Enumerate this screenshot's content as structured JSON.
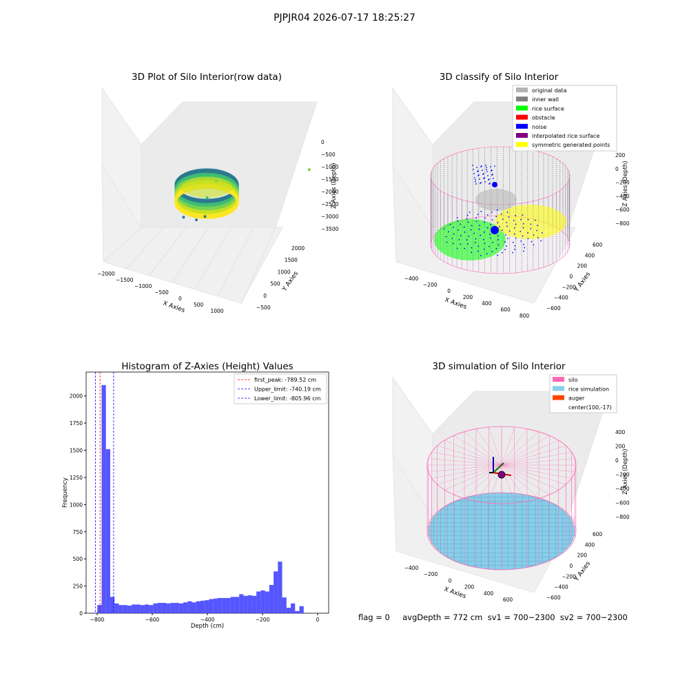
{
  "suptitle": "PJPJR04 2026-07-17 18:25:27",
  "status_line": "flag = 0     avgDepth = 772 cm  sv1 = 700~2300  sv2 = 700~2300",
  "colors": {
    "raw_gradient": [
      "#2a788e",
      "#3fbc73",
      "#7ad151",
      "#c8e020",
      "#fde725"
    ],
    "original_data": "#b3b3b3",
    "inner_wall": "#808080",
    "rice_surface": "#00ff00",
    "obstacle": "#ff0000",
    "noise": "#0000ff",
    "interpolated_rice_surface": "#800080",
    "symmetric_generated_points": "#ffff00",
    "silo": "#ff69b4",
    "rice_simulation": "#87ceeb",
    "auger": "#ff4500",
    "hist_bar": "#4444ff",
    "first_peak_line": "#ff0000",
    "limit_line": "#0000ff"
  },
  "chart_data": [
    {
      "type": "scatter3d",
      "title": "3D Plot of Silo Interior(row data)",
      "xlabel": "X Axies",
      "ylabel": "Y Axies",
      "zlabel": "Z Axies (Depth)",
      "xticks": [
        "−2000",
        "−1500",
        "−1000",
        "−500",
        "0",
        "500",
        "1000"
      ],
      "yticks": [
        "−500",
        "0",
        "500",
        "1000",
        "1500",
        "2000"
      ],
      "zticks": [
        "0",
        "−500",
        "−1000",
        "−1500",
        "−2000",
        "−2500",
        "−3000",
        "−3500"
      ],
      "xlim": [
        -2100,
        1250
      ],
      "ylim": [
        -700,
        2200
      ],
      "zlim": [
        -3700,
        100
      ],
      "description_series": "raw point cloud forming a silo ring, colored by depth; a few outlier points",
      "outliers": [
        [
          1150,
          800,
          -1700
        ],
        [
          -150,
          -300,
          -1750
        ],
        [
          -400,
          -100,
          -2600
        ],
        [
          -200,
          -700,
          -3200
        ],
        [
          -400,
          -600,
          -3400
        ],
        [
          -800,
          -200,
          -3450
        ]
      ]
    },
    {
      "type": "scatter3d",
      "title": "3D classify of Silo Interior",
      "xlabel": "X Axies",
      "ylabel": "Y Axies",
      "zlabel": "Z Axies (Depth)",
      "xticks": [
        "−400",
        "−200",
        "0",
        "200",
        "400",
        "600",
        "800"
      ],
      "yticks": [
        "−600",
        "−400",
        "−200",
        "0",
        "200",
        "400",
        "600"
      ],
      "zticks": [
        "200",
        "0",
        "−200",
        "−400",
        "−600",
        "−800"
      ],
      "xlim": [
        -550,
        850
      ],
      "ylim": [
        -650,
        650
      ],
      "zlim": [
        -900,
        350
      ],
      "legend_position": "upper right",
      "legend": [
        "original data",
        "inner wall",
        "rice surface",
        "obstacle",
        "noise",
        "interpolated rice surface",
        "symmetric generated points"
      ]
    },
    {
      "type": "bar",
      "title": "Histogram of Z-Axies (Height) Values",
      "xlabel": "Depth (cm)",
      "ylabel": "Frequency",
      "xlim": [
        -840,
        40
      ],
      "ylim": [
        0,
        2220
      ],
      "xticks": [
        -800,
        -600,
        -400,
        -200,
        0
      ],
      "yticks": [
        0,
        250,
        500,
        750,
        1000,
        1250,
        1500,
        1750,
        2000
      ],
      "bin_width": 15.6,
      "bin_start": -815,
      "values": [
        5,
        75,
        2100,
        1510,
        150,
        90,
        75,
        75,
        70,
        80,
        80,
        75,
        80,
        75,
        90,
        95,
        95,
        90,
        95,
        95,
        90,
        100,
        110,
        100,
        110,
        115,
        120,
        130,
        135,
        140,
        140,
        140,
        150,
        150,
        175,
        160,
        165,
        160,
        200,
        210,
        200,
        260,
        385,
        475,
        145,
        50,
        90,
        20,
        65
      ],
      "vlines": [
        {
          "label": "first_peak: -789.52 cm",
          "x": -789.52,
          "color": "#ff0000"
        },
        {
          "label": "Upper_limit: -740.19 cm",
          "x": -740.19,
          "color": "#0000ff"
        },
        {
          "label": "Lower_limit: -805.96 cm",
          "x": -805.96,
          "color": "#0000ff"
        }
      ],
      "legend_position": "upper right"
    },
    {
      "type": "surface3d",
      "title": "3D simulation of Silo Interior",
      "xlabel": "X Axies",
      "ylabel": "Y Axies",
      "zlabel": "Z Axies (Depth)",
      "xticks": [
        "−400",
        "−200",
        "0",
        "200",
        "400",
        "600"
      ],
      "yticks": [
        "−600",
        "−400",
        "−200",
        "0",
        "200",
        "400",
        "600"
      ],
      "zticks": [
        "400",
        "200",
        "0",
        "−200",
        "−400",
        "−600",
        "−800"
      ],
      "xlim": [
        -550,
        750
      ],
      "ylim": [
        -650,
        650
      ],
      "zlim": [
        -900,
        450
      ],
      "legend_position": "upper right",
      "legend": [
        "silo",
        "rice simulation",
        "auger",
        "center(100,-17)"
      ]
    }
  ]
}
